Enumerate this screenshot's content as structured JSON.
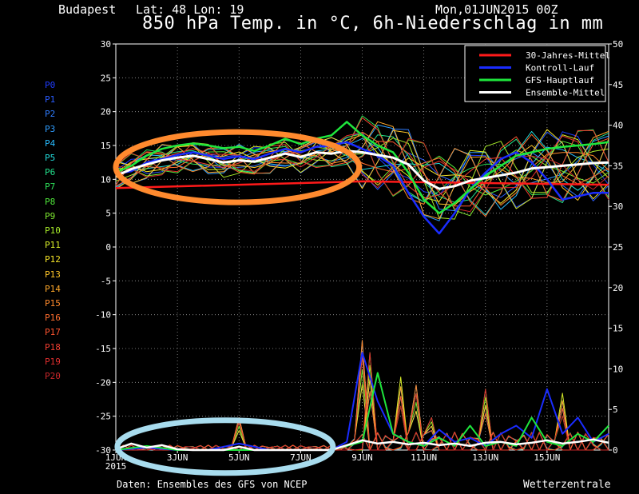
{
  "header": {
    "location": "Budapest",
    "coords": "Lat: 48 Lon: 19",
    "run": "Mon,01JUN2015 00Z",
    "title": "850 hPa Temp. in °C, 6h-Niederschlag in mm"
  },
  "footer": {
    "source": "Daten: Ensembles des GFS von NCEP",
    "brand": "Wetterzentrale"
  },
  "members": [
    {
      "label": "P0",
      "color": "#1e3cff"
    },
    {
      "label": "P1",
      "color": "#2a5cff"
    },
    {
      "label": "P2",
      "color": "#2f7dff"
    },
    {
      "label": "P3",
      "color": "#2f9dff"
    },
    {
      "label": "P4",
      "color": "#28bcff"
    },
    {
      "label": "P5",
      "color": "#22d8d8"
    },
    {
      "label": "P6",
      "color": "#22e08c"
    },
    {
      "label": "P7",
      "color": "#2ee05a"
    },
    {
      "label": "P8",
      "color": "#4fe63a"
    },
    {
      "label": "P9",
      "color": "#7ee830"
    },
    {
      "label": "P10",
      "color": "#a8ec2a"
    },
    {
      "label": "P11",
      "color": "#d8ee28"
    },
    {
      "label": "P12",
      "color": "#f6e428"
    },
    {
      "label": "P13",
      "color": "#ffc628"
    },
    {
      "label": "P14",
      "color": "#ffa82a"
    },
    {
      "label": "P15",
      "color": "#ff8a2c"
    },
    {
      "label": "P16",
      "color": "#ff6e2e"
    },
    {
      "label": "P17",
      "color": "#ff5530"
    },
    {
      "label": "P18",
      "color": "#f23e30"
    },
    {
      "label": "P19",
      "color": "#e02e2e"
    },
    {
      "label": "P20",
      "color": "#c8262a"
    }
  ],
  "chart_data": {
    "type": "line",
    "x_unit": "days after 01JUN2015 00Z",
    "xlim": [
      0,
      16
    ],
    "ylim": [
      -30,
      30
    ],
    "y2lim": [
      0,
      50
    ],
    "y_ticks": [
      -30,
      -25,
      -20,
      -15,
      -10,
      -5,
      0,
      5,
      10,
      15,
      20,
      25,
      30
    ],
    "y2_ticks": [
      0,
      5,
      10,
      15,
      20,
      25,
      30,
      35,
      40,
      45,
      50
    ],
    "x_ticks": [
      {
        "x": 0,
        "label": "1JUN",
        "sublabel": "2015"
      },
      {
        "x": 2,
        "label": "3JUN"
      },
      {
        "x": 4,
        "label": "5JUN"
      },
      {
        "x": 6,
        "label": "7JUN"
      },
      {
        "x": 8,
        "label": "9JUN"
      },
      {
        "x": 10,
        "label": "11JUN"
      },
      {
        "x": 12,
        "label": "13JUN"
      },
      {
        "x": 14,
        "label": "15JUN"
      }
    ],
    "grid": true,
    "legend_position": "top-right",
    "legend": [
      {
        "name": "30-Jahres-Mittel",
        "color": "#ff1a1a"
      },
      {
        "name": "Kontroll-Lauf",
        "color": "#1a2cff"
      },
      {
        "name": "GFS-Hauptlauf",
        "color": "#1ee63c"
      },
      {
        "name": "Ensemble-Mittel",
        "color": "#ffffff"
      }
    ],
    "climatology": {
      "x": [
        0,
        8,
        16
      ],
      "y": [
        8.7,
        9.7,
        9.2
      ]
    },
    "ensemble_mean_temp": {
      "x": [
        0,
        0.5,
        1,
        1.5,
        2,
        2.5,
        3,
        3.5,
        4,
        4.5,
        5,
        5.5,
        6,
        6.5,
        7,
        7.5,
        8,
        8.5,
        9,
        9.5,
        10,
        10.5,
        11,
        11.5,
        12,
        12.5,
        13,
        13.5,
        14,
        14.5,
        15,
        15.5,
        16
      ],
      "y": [
        10.5,
        11.5,
        12.2,
        12.8,
        13.2,
        13.5,
        13.0,
        12.5,
        12.8,
        12.6,
        13.2,
        13.8,
        13.3,
        14.0,
        13.8,
        14.2,
        14.0,
        13.6,
        13.2,
        12.2,
        9.8,
        8.6,
        9.0,
        9.8,
        10.2,
        10.6,
        11.0,
        11.6,
        11.8,
        12.0,
        12.2,
        12.4,
        12.5
      ]
    },
    "gfs_main_temp": {
      "x": [
        0,
        0.5,
        1,
        1.5,
        2,
        2.5,
        3,
        3.5,
        4,
        4.5,
        5,
        5.5,
        6,
        6.5,
        7,
        7.5,
        8,
        8.5,
        9,
        9.5,
        10,
        10.5,
        11,
        11.5,
        12,
        12.5,
        13,
        13.5,
        14,
        14.5,
        15,
        15.5,
        16
      ],
      "y": [
        11.0,
        12.0,
        13.5,
        14.5,
        15.0,
        15.3,
        15.0,
        14.6,
        14.8,
        14.2,
        15.0,
        16.0,
        15.2,
        16.0,
        16.5,
        18.5,
        16.5,
        15.0,
        14.0,
        11.0,
        7.0,
        5.0,
        6.5,
        8.5,
        10.5,
        12.0,
        13.5,
        14.0,
        14.5,
        14.8,
        15.0,
        15.2,
        15.5
      ]
    },
    "control_temp": {
      "x": [
        0,
        0.5,
        1,
        1.5,
        2,
        2.5,
        3,
        3.5,
        4,
        4.5,
        5,
        5.5,
        6,
        6.5,
        7,
        7.5,
        8,
        8.5,
        9,
        9.5,
        10,
        10.5,
        11,
        11.5,
        12,
        12.5,
        13,
        13.5,
        14,
        14.5,
        15,
        15.5,
        16
      ],
      "y": [
        10.8,
        11.2,
        12.5,
        13.0,
        13.6,
        14.0,
        13.5,
        13.0,
        13.4,
        13.0,
        13.8,
        14.5,
        14.0,
        14.8,
        15.0,
        15.5,
        14.5,
        13.5,
        12.0,
        8.0,
        4.5,
        2.0,
        5.0,
        8.5,
        11.0,
        13.0,
        14.0,
        12.5,
        10.0,
        7.0,
        7.5,
        8.0,
        8.0
      ]
    },
    "ensemble_mean_precip": {
      "x": [
        0,
        0.5,
        1,
        1.5,
        2,
        2.5,
        3,
        3.5,
        4,
        4.5,
        5,
        5.5,
        6,
        6.5,
        7,
        7.5,
        8,
        8.5,
        9,
        9.5,
        10,
        10.5,
        11,
        11.5,
        12,
        12.5,
        13,
        13.5,
        14,
        14.5,
        15,
        15.5,
        16
      ],
      "y": [
        0.1,
        0.8,
        0.3,
        0.6,
        0.1,
        0,
        0,
        0,
        0.4,
        0,
        0,
        0,
        0,
        0,
        0,
        0.6,
        1.2,
        0.8,
        1.0,
        0.7,
        0.9,
        0.6,
        0.8,
        0.5,
        0.9,
        1.0,
        0.7,
        0.9,
        1.2,
        0.8,
        1.0,
        1.3,
        0.9
      ]
    },
    "gfs_main_precip": {
      "x": [
        0,
        1,
        2,
        3,
        4,
        5,
        6,
        7,
        7.5,
        8,
        8.5,
        9,
        9.5,
        10,
        10.5,
        11,
        11.5,
        12,
        12.5,
        13,
        13.5,
        14,
        14.5,
        15,
        15.5,
        16
      ],
      "y": [
        0,
        0.5,
        0,
        0,
        0,
        0,
        0,
        0,
        0.5,
        1.0,
        9.5,
        2.0,
        1.0,
        0.5,
        1.5,
        0.5,
        3.0,
        0.5,
        1.0,
        0.5,
        4.0,
        1.0,
        0.5,
        2.0,
        1.0,
        3.0
      ]
    },
    "control_precip": {
      "x": [
        0,
        1,
        2,
        3,
        4,
        5,
        6,
        7,
        7.5,
        8,
        8.5,
        9,
        9.5,
        10,
        10.5,
        11,
        11.5,
        12,
        12.5,
        13,
        13.5,
        14,
        14.5,
        15,
        15.5,
        16
      ],
      "y": [
        0,
        0.3,
        0,
        0,
        0.8,
        0,
        0,
        0,
        1.0,
        12.0,
        6.0,
        2.0,
        1.0,
        0.5,
        2.5,
        1.0,
        1.5,
        0.5,
        2.0,
        3.0,
        1.5,
        7.5,
        2.0,
        4.0,
        1.0,
        2.0
      ]
    },
    "member_temp_spread": {
      "x_end": 16
    },
    "member_precip_peaks": [
      {
        "x": 7.9,
        "y": 13.5
      },
      {
        "x": 8.2,
        "y": 12.0
      },
      {
        "x": 9.3,
        "y": 9.0
      },
      {
        "x": 9.8,
        "y": 8.0
      },
      {
        "x": 11.9,
        "y": 7.5
      },
      {
        "x": 14.5,
        "y": 7.0
      },
      {
        "x": 3.9,
        "y": 4.0
      },
      {
        "x": 10.3,
        "y": 4.0
      }
    ],
    "annotations": [
      {
        "shape": "ellipse",
        "color": "#ff8a2e",
        "cx": 3.95,
        "cy": 11.8,
        "rx": 3.95,
        "ry": 5.2
      },
      {
        "shape": "ellipse",
        "color": "#a8dcee",
        "cx": 3.55,
        "cy": -29.5,
        "rx": 3.5,
        "ry": 3.9
      }
    ]
  }
}
